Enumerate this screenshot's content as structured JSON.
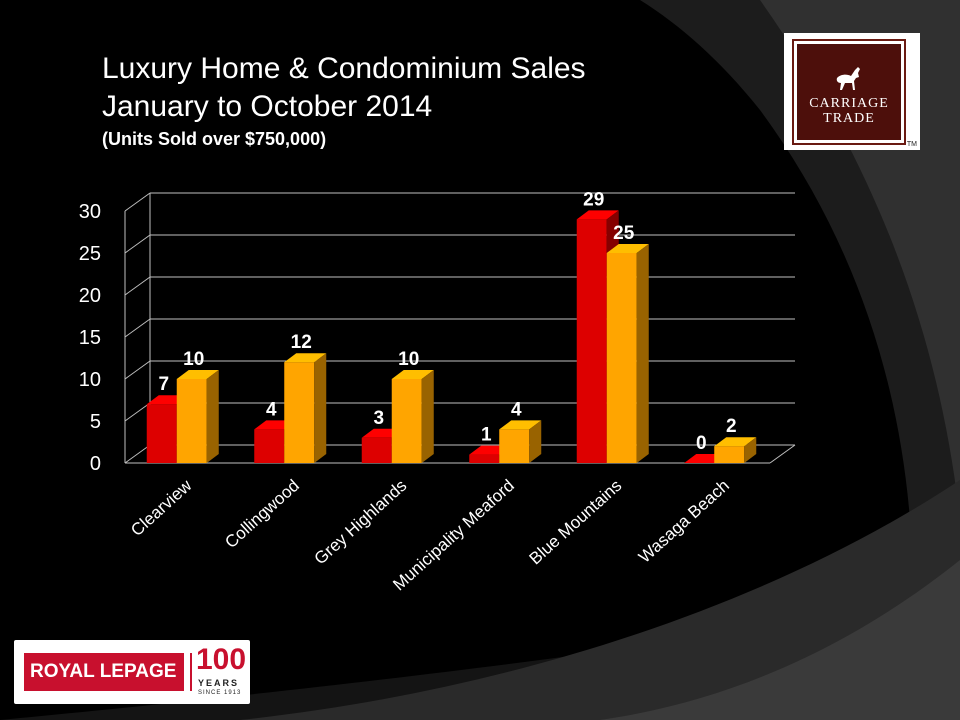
{
  "slide": {
    "title_line1": "Luxury Home & Condominium Sales",
    "title_line2": "January to October 2014",
    "subtitle": "(Units Sold over $750,000)"
  },
  "logos": {
    "carriage_trade_line1": "CARRIAGE",
    "carriage_trade_line2": "TRADE",
    "carriage_trade_tm": "TM",
    "royal_lepage": "ROYAL LEPAGE",
    "royal_lepage_100": "100",
    "royal_lepage_years": "YEARS",
    "royal_lepage_since": "SINCE 1913"
  },
  "colors": {
    "background": "#000000",
    "series_a": "#dd0000",
    "series_b": "#ffa500",
    "gridline": "#bfbfbf",
    "text": "#ffffff"
  },
  "chart_data": {
    "type": "bar",
    "categories": [
      "Clearview",
      "Collingwood",
      "Grey Highlands",
      "Municipality Meaford",
      "Blue Mountains",
      "Wasaga Beach"
    ],
    "series": [
      {
        "values": [
          7,
          4,
          3,
          1,
          29,
          0
        ],
        "color": "#dd0000"
      },
      {
        "values": [
          10,
          12,
          10,
          4,
          25,
          2
        ],
        "color": "#ffa500"
      }
    ],
    "ylim": [
      0,
      30
    ],
    "yticks": [
      0,
      5,
      10,
      15,
      20,
      25,
      30
    ],
    "grid": true,
    "legend": "none",
    "style": "3d"
  }
}
